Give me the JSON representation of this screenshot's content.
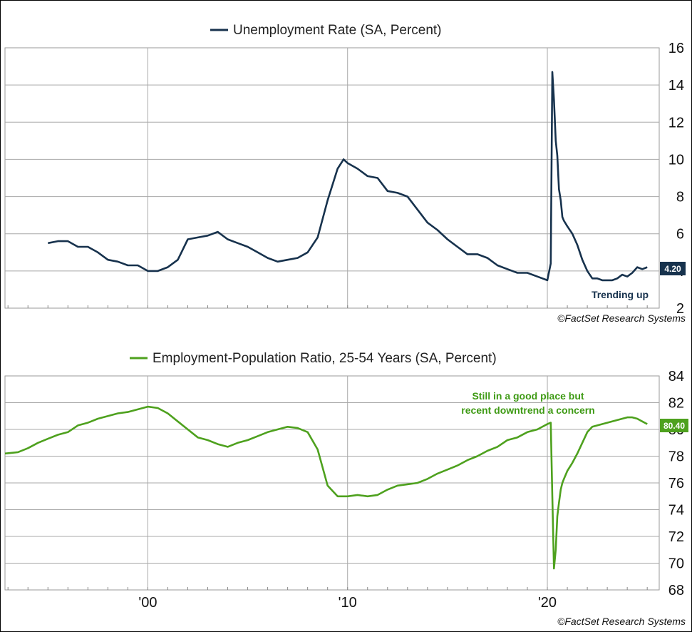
{
  "chart_data": [
    {
      "type": "line",
      "legend": "Unemployment Rate (SA, Percent)",
      "legend_placement": "top-center",
      "ylim": [
        2,
        16
      ],
      "yticks": [
        "16",
        "14",
        "12",
        "10",
        "8",
        "6",
        "4",
        "2"
      ],
      "grid": true,
      "color": "#17324d",
      "last_value_label": "4.20",
      "annotation": "Trending up",
      "source": "©FactSet Research Systems",
      "series": [
        {
          "x": [
            1995.0,
            1995.5,
            1996.0,
            1996.5,
            1997.0,
            1997.5,
            1998.0,
            1998.5,
            1999.0,
            1999.5,
            2000.0,
            2000.5,
            2001.0,
            2001.5,
            2002.0,
            2002.5,
            2003.0,
            2003.5,
            2004.0,
            2004.5,
            2005.0,
            2005.5,
            2006.0,
            2006.5,
            2007.0,
            2007.5,
            2008.0,
            2008.5,
            2009.0,
            2009.5,
            2009.8,
            2010.0,
            2010.5,
            2011.0,
            2011.5,
            2012.0,
            2012.5,
            2013.0,
            2013.5,
            2014.0,
            2014.5,
            2015.0,
            2015.5,
            2016.0,
            2016.5,
            2017.0,
            2017.5,
            2018.0,
            2018.5,
            2019.0,
            2019.5,
            2020.0,
            2020.17,
            2020.25,
            2020.33,
            2020.42,
            2020.5,
            2020.58,
            2020.67,
            2020.75,
            2020.83,
            2021.0,
            2021.25,
            2021.5,
            2021.75,
            2022.0,
            2022.25,
            2022.5,
            2022.75,
            2023.0,
            2023.25,
            2023.5,
            2023.75,
            2024.0,
            2024.25,
            2024.5,
            2024.75,
            2025.0
          ],
          "y": [
            5.5,
            5.6,
            5.6,
            5.3,
            5.3,
            5.0,
            4.6,
            4.5,
            4.3,
            4.3,
            4.0,
            4.0,
            4.2,
            4.6,
            5.7,
            5.8,
            5.9,
            6.1,
            5.7,
            5.5,
            5.3,
            5.0,
            4.7,
            4.5,
            4.6,
            4.7,
            5.0,
            5.8,
            7.8,
            9.5,
            10.0,
            9.8,
            9.5,
            9.1,
            9.0,
            8.3,
            8.2,
            8.0,
            7.3,
            6.6,
            6.2,
            5.7,
            5.3,
            4.9,
            4.9,
            4.7,
            4.3,
            4.1,
            3.9,
            3.9,
            3.7,
            3.5,
            4.4,
            14.7,
            13.2,
            11.0,
            10.2,
            8.4,
            7.8,
            6.9,
            6.7,
            6.4,
            6.0,
            5.4,
            4.6,
            4.0,
            3.6,
            3.6,
            3.5,
            3.5,
            3.5,
            3.6,
            3.8,
            3.7,
            3.9,
            4.2,
            4.1,
            4.2
          ]
        }
      ]
    },
    {
      "type": "line",
      "legend": "Employment-Population Ratio, 25-54 Years (SA, Percent)",
      "legend_placement": "top-center",
      "ylim": [
        68,
        84
      ],
      "yticks": [
        "84",
        "82",
        "80",
        "78",
        "76",
        "74",
        "72",
        "70",
        "68"
      ],
      "xticks": [
        "'00",
        "'10",
        "'20"
      ],
      "xtick_values": [
        2000,
        2010,
        2020
      ],
      "xlim": [
        1992.85,
        2025.6
      ],
      "grid": true,
      "color": "#4ea11e",
      "last_value_label": "80.40",
      "annotation": [
        "Still in a good place but",
        "recent downtrend a concern"
      ],
      "source": "©FactSet Research Systems",
      "series": [
        {
          "x": [
            1992.85,
            1993.5,
            1994.0,
            1994.5,
            1995.0,
            1995.5,
            1996.0,
            1996.5,
            1997.0,
            1997.5,
            1998.0,
            1998.5,
            1999.0,
            1999.5,
            2000.0,
            2000.5,
            2001.0,
            2001.5,
            2002.0,
            2002.5,
            2003.0,
            2003.5,
            2004.0,
            2004.5,
            2005.0,
            2005.5,
            2006.0,
            2006.5,
            2007.0,
            2007.5,
            2008.0,
            2008.5,
            2009.0,
            2009.5,
            2010.0,
            2010.5,
            2011.0,
            2011.5,
            2012.0,
            2012.5,
            2013.0,
            2013.5,
            2014.0,
            2014.5,
            2015.0,
            2015.5,
            2016.0,
            2016.5,
            2017.0,
            2017.5,
            2018.0,
            2018.5,
            2019.0,
            2019.5,
            2020.0,
            2020.17,
            2020.25,
            2020.33,
            2020.42,
            2020.5,
            2020.58,
            2020.67,
            2020.75,
            2020.83,
            2021.0,
            2021.25,
            2021.5,
            2021.75,
            2022.0,
            2022.25,
            2022.5,
            2022.75,
            2023.0,
            2023.25,
            2023.5,
            2023.75,
            2024.0,
            2024.25,
            2024.5,
            2024.75,
            2025.0
          ],
          "y": [
            78.2,
            78.3,
            78.6,
            79.0,
            79.3,
            79.6,
            79.8,
            80.3,
            80.5,
            80.8,
            81.0,
            81.2,
            81.3,
            81.5,
            81.7,
            81.6,
            81.2,
            80.6,
            80.0,
            79.4,
            79.2,
            78.9,
            78.7,
            79.0,
            79.2,
            79.5,
            79.8,
            80.0,
            80.2,
            80.1,
            79.8,
            78.5,
            75.8,
            75.0,
            75.0,
            75.1,
            75.0,
            75.1,
            75.5,
            75.8,
            75.9,
            76.0,
            76.3,
            76.7,
            77.0,
            77.3,
            77.7,
            78.0,
            78.4,
            78.7,
            79.2,
            79.4,
            79.8,
            80.0,
            80.4,
            80.5,
            75.0,
            69.6,
            71.0,
            73.5,
            74.5,
            75.5,
            76.0,
            76.3,
            76.9,
            77.5,
            78.2,
            79.0,
            79.8,
            80.2,
            80.3,
            80.4,
            80.5,
            80.6,
            80.7,
            80.8,
            80.9,
            80.9,
            80.8,
            80.6,
            80.4
          ]
        }
      ]
    }
  ]
}
